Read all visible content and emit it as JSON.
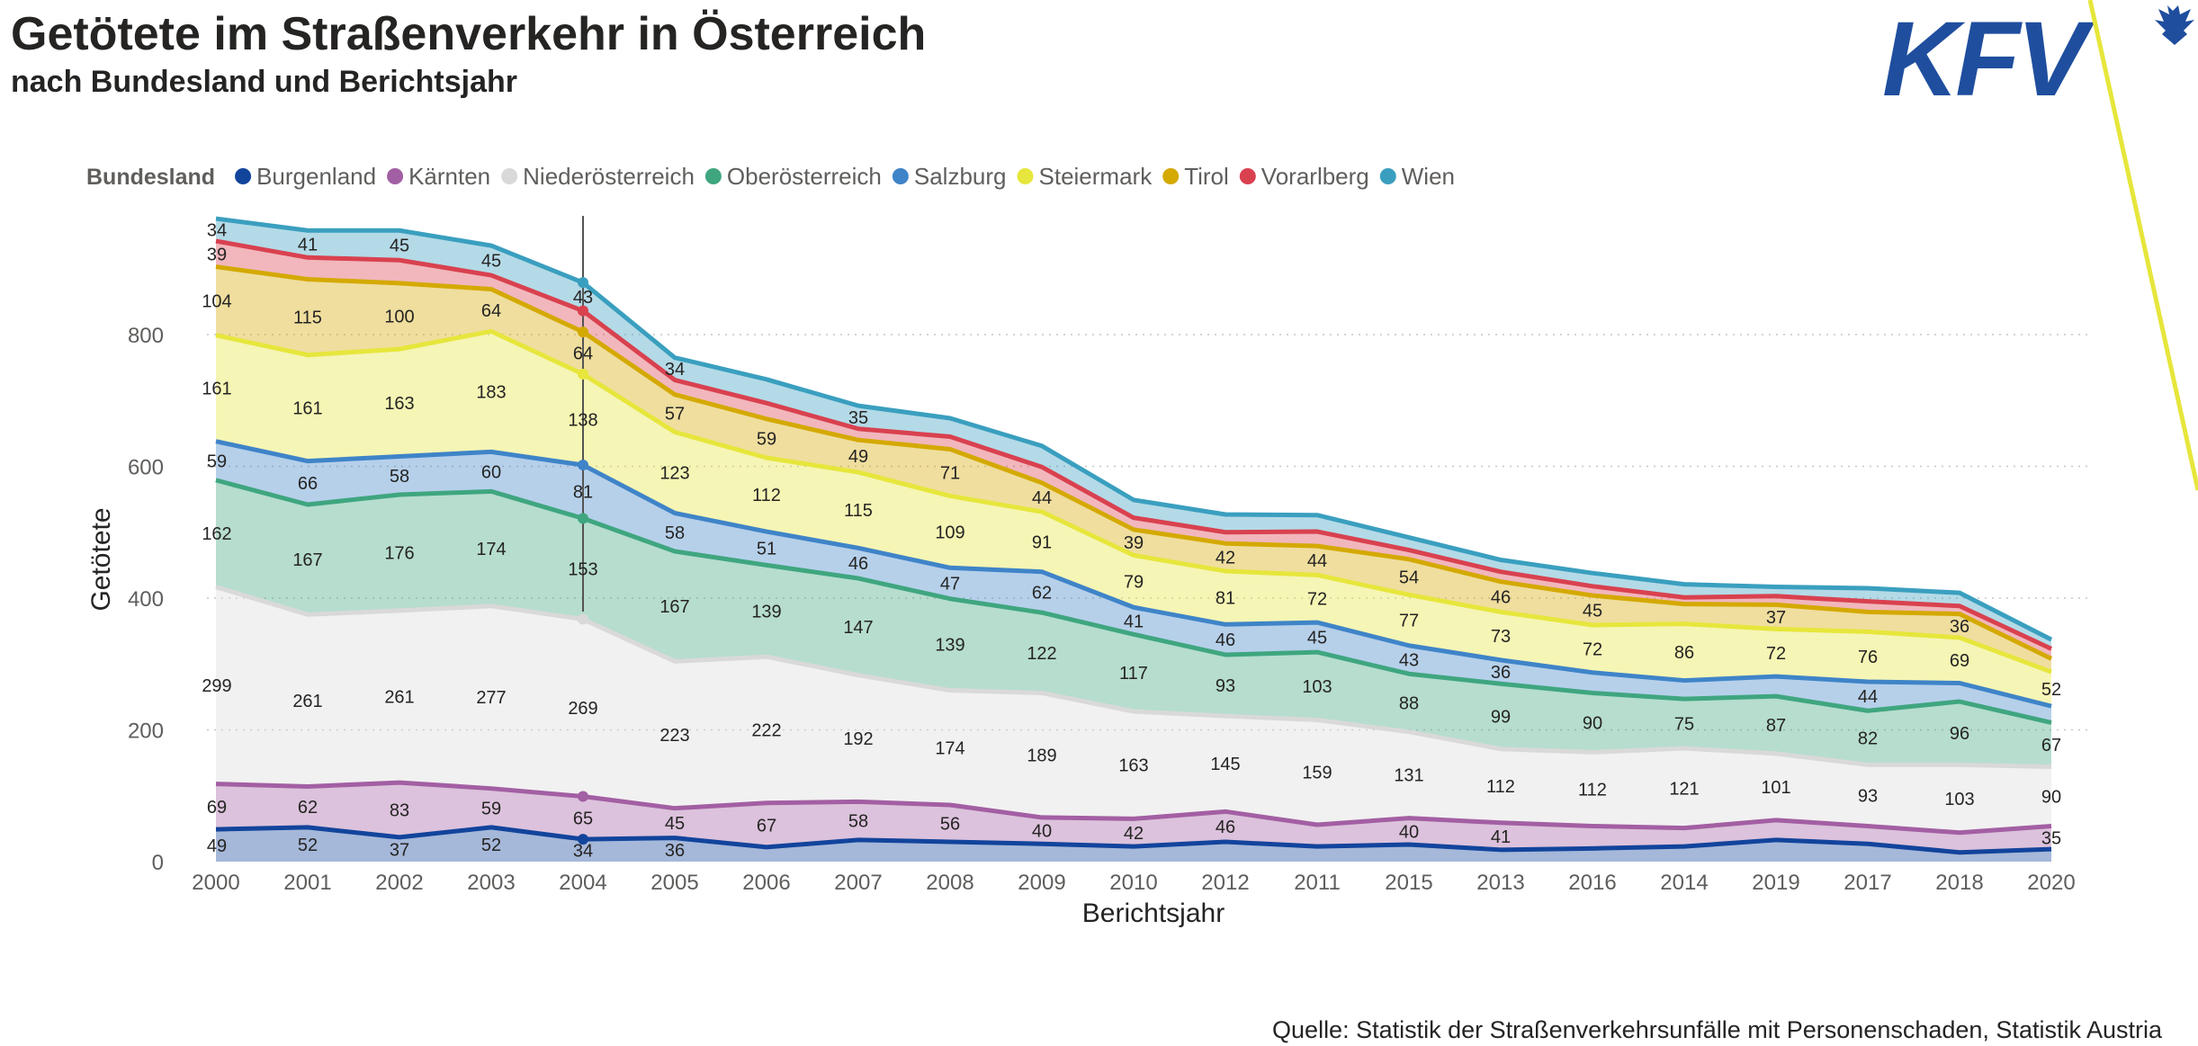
{
  "header": {
    "title": "Getötete im Straßenverkehr in Österreich",
    "subtitle": "nach Bundesland und Berichtsjahr"
  },
  "logo": {
    "text": "KFV",
    "color": "#1f4e9e",
    "accent": "#e6e63c"
  },
  "footer": {
    "source": "Quelle: Statistik der Straßenverkehrsunfälle mit Personenschaden, Statistik Austria"
  },
  "chart_data": {
    "type": "area",
    "stacked": true,
    "title": "Getötete im Straßenverkehr in Österreich",
    "subtitle": "nach Bundesland und Berichtsjahr",
    "xlabel": "Berichtsjahr",
    "ylabel": "Getötete",
    "ylim": [
      0,
      1000
    ],
    "yticks": [
      0,
      200,
      400,
      600,
      800
    ],
    "grid": true,
    "legend_title": "Bundesland",
    "legend_position": "top-left",
    "categories": [
      "2000",
      "2001",
      "2002",
      "2003",
      "2004",
      "2005",
      "2006",
      "2007",
      "2008",
      "2009",
      "2010",
      "2012",
      "2011",
      "2015",
      "2013",
      "2016",
      "2014",
      "2019",
      "2017",
      "2018",
      "2020"
    ],
    "highlight_category": "2004",
    "series": [
      {
        "name": "Burgenland",
        "color": "#12449c",
        "values": [
          49,
          52,
          37,
          52,
          34,
          36,
          22,
          33,
          30,
          27,
          23,
          30,
          23,
          26,
          18,
          20,
          23,
          33,
          27,
          14,
          19
        ],
        "labels": [
          49,
          52,
          37,
          52,
          34,
          36,
          null,
          null,
          null,
          null,
          null,
          null,
          null,
          null,
          null,
          null,
          null,
          null,
          null,
          null,
          null
        ]
      },
      {
        "name": "Kärnten",
        "color": "#a35fa3",
        "values": [
          69,
          62,
          83,
          59,
          65,
          45,
          67,
          58,
          56,
          40,
          42,
          46,
          33,
          40,
          41,
          34,
          28,
          30,
          27,
          30,
          35
        ],
        "labels": [
          69,
          62,
          83,
          59,
          65,
          45,
          67,
          58,
          56,
          40,
          42,
          46,
          null,
          40,
          41,
          null,
          null,
          null,
          null,
          null,
          35
        ]
      },
      {
        "name": "Niederösterreich",
        "color": "#d9d9d9",
        "values": [
          299,
          261,
          261,
          277,
          269,
          223,
          222,
          192,
          174,
          189,
          163,
          145,
          159,
          131,
          112,
          112,
          121,
          101,
          93,
          103,
          90
        ],
        "labels": [
          299,
          261,
          261,
          277,
          269,
          223,
          222,
          192,
          174,
          189,
          163,
          145,
          159,
          131,
          112,
          112,
          121,
          101,
          93,
          103,
          90
        ]
      },
      {
        "name": "Oberösterreich",
        "color": "#3fa67f",
        "values": [
          162,
          167,
          176,
          174,
          153,
          167,
          139,
          147,
          139,
          122,
          117,
          93,
          103,
          88,
          99,
          90,
          75,
          87,
          82,
          96,
          67
        ],
        "labels": [
          162,
          167,
          176,
          174,
          153,
          167,
          139,
          147,
          139,
          122,
          117,
          93,
          103,
          88,
          99,
          90,
          75,
          87,
          82,
          96,
          67
        ]
      },
      {
        "name": "Salzburg",
        "color": "#3f84c8",
        "values": [
          59,
          66,
          58,
          60,
          81,
          58,
          51,
          46,
          47,
          62,
          41,
          46,
          45,
          43,
          36,
          31,
          28,
          30,
          44,
          28,
          25
        ],
        "labels": [
          59,
          66,
          58,
          60,
          81,
          58,
          51,
          46,
          47,
          62,
          41,
          46,
          45,
          43,
          36,
          null,
          null,
          null,
          44,
          null,
          null
        ]
      },
      {
        "name": "Steiermark",
        "color": "#e6e63c",
        "values": [
          161,
          161,
          163,
          183,
          138,
          123,
          112,
          115,
          109,
          91,
          79,
          81,
          72,
          77,
          73,
          72,
          86,
          72,
          76,
          69,
          52
        ],
        "labels": [
          161,
          161,
          163,
          183,
          138,
          123,
          112,
          115,
          109,
          91,
          79,
          81,
          72,
          77,
          73,
          72,
          86,
          72,
          76,
          69,
          52
        ]
      },
      {
        "name": "Tirol",
        "color": "#d4a900",
        "values": [
          104,
          115,
          100,
          64,
          64,
          57,
          59,
          49,
          71,
          44,
          39,
          42,
          44,
          54,
          46,
          45,
          30,
          37,
          30,
          36,
          20
        ],
        "labels": [
          104,
          115,
          100,
          64,
          64,
          57,
          59,
          49,
          71,
          44,
          39,
          42,
          44,
          54,
          46,
          45,
          null,
          37,
          null,
          36,
          null
        ]
      },
      {
        "name": "Vorarlberg",
        "color": "#d9414f",
        "values": [
          39,
          33,
          35,
          21,
          32,
          22,
          24,
          17,
          19,
          24,
          18,
          17,
          22,
          14,
          15,
          14,
          10,
          13,
          16,
          12,
          15
        ],
        "labels": [
          39,
          null,
          null,
          null,
          null,
          null,
          null,
          null,
          null,
          null,
          null,
          null,
          null,
          null,
          null,
          null,
          null,
          null,
          null,
          null,
          null
        ]
      },
      {
        "name": "Wien",
        "color": "#3a9fbf",
        "values": [
          34,
          41,
          45,
          45,
          43,
          34,
          36,
          35,
          28,
          32,
          27,
          27,
          25,
          19,
          18,
          20,
          20,
          14,
          20,
          20,
          14
        ],
        "labels": [
          34,
          41,
          45,
          45,
          43,
          34,
          null,
          35,
          null,
          null,
          null,
          null,
          null,
          null,
          null,
          null,
          null,
          null,
          null,
          null,
          null
        ]
      }
    ]
  }
}
